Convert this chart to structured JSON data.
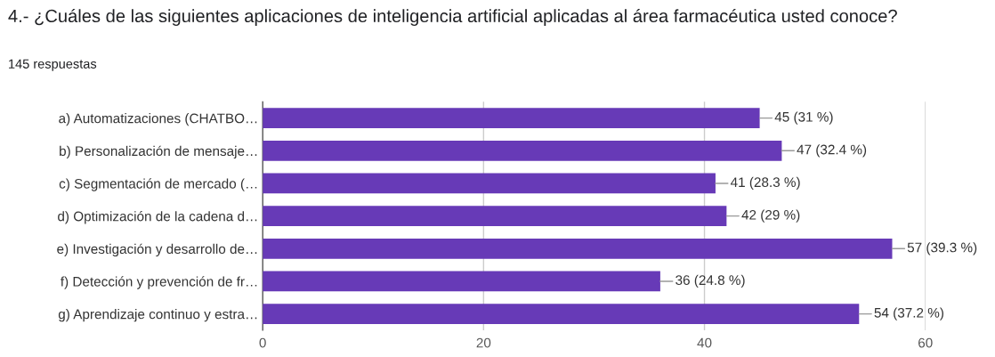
{
  "chart_data": {
    "type": "bar",
    "orientation": "horizontal",
    "title": "4.- ¿Cuáles de las siguientes aplicaciones de inteligencia artificial aplicadas al área farmacéutica usted conoce?",
    "subtitle": "145 respuestas",
    "categories": [
      "a) Automatizaciones (CHATBO…",
      "b) Personalización de mensaje…",
      "c) Segmentación de mercado (…",
      "d) Optimización de la cadena d…",
      "e) Investigación y desarrollo de…",
      "f) Detección y prevención de fr…",
      "g) Aprendizaje continuo y estra…"
    ],
    "values": [
      45,
      47,
      41,
      42,
      57,
      36,
      54
    ],
    "value_labels": [
      "45 (31 %)",
      "47 (32.4 %)",
      "41 (28.3 %)",
      "42 (29 %)",
      "57 (39.3 %)",
      "36 (24.8 %)",
      "54 (37.2 %)"
    ],
    "color": "#673ab7",
    "xlim": [
      0,
      60
    ],
    "xticks": [
      0,
      20,
      40,
      60
    ],
    "grid": "x"
  }
}
